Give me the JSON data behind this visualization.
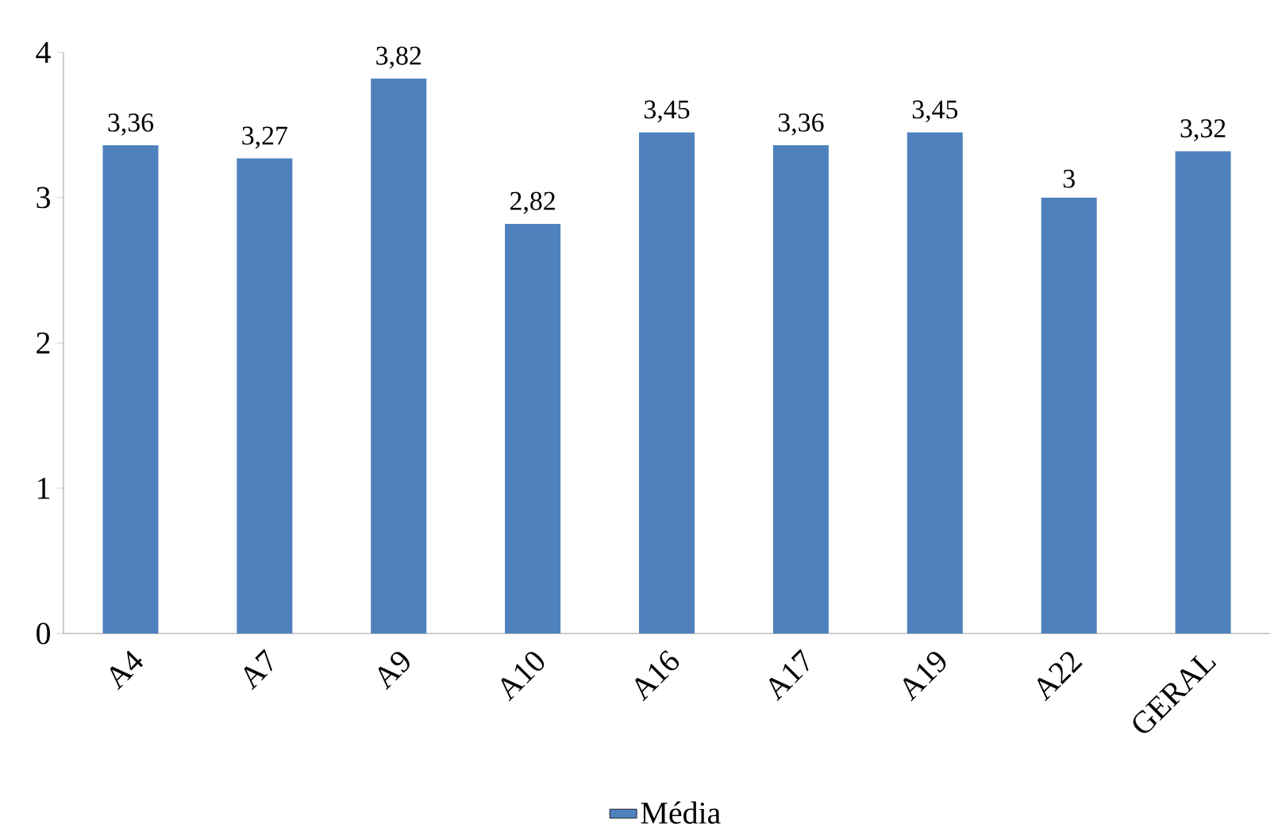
{
  "chart_data": {
    "type": "bar",
    "categories": [
      "A4",
      "A7",
      "A9",
      "A10",
      "A16",
      "A17",
      "A19",
      "A22",
      "GERAL"
    ],
    "series": [
      {
        "name": "Média",
        "color": "#4f81bd",
        "values": [
          3.36,
          3.27,
          3.82,
          2.82,
          3.45,
          3.36,
          3.45,
          3.0,
          3.32
        ],
        "value_labels": [
          "3,36",
          "3,27",
          "3,82",
          "2,82",
          "3,45",
          "3,36",
          "3,45",
          "3",
          "3,32"
        ]
      }
    ],
    "ylim": [
      0,
      4
    ],
    "yticks": [
      0,
      1,
      2,
      3,
      4
    ],
    "grid": false,
    "legend": "bottom"
  }
}
